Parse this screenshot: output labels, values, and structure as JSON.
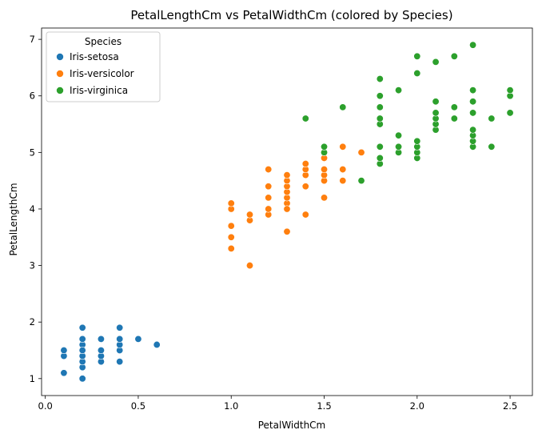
{
  "chart_data": {
    "type": "scatter",
    "title": "PetalLengthCm vs PetalWidthCm (colored by Species)",
    "xlabel": "PetalWidthCm",
    "ylabel": "PetalLengthCm",
    "xlim": [
      -0.02,
      2.62
    ],
    "ylim": [
      0.7,
      7.2
    ],
    "xticks": [
      0.0,
      0.5,
      1.0,
      1.5,
      2.0,
      2.5
    ],
    "xtick_labels": [
      "0.0",
      "0.5",
      "1.0",
      "1.5",
      "2.0",
      "2.5"
    ],
    "yticks": [
      1,
      2,
      3,
      4,
      5,
      6,
      7
    ],
    "ytick_labels": [
      "1",
      "2",
      "3",
      "4",
      "5",
      "6",
      "7"
    ],
    "grid": false,
    "legend": {
      "title": "Species",
      "placement": "top-left"
    },
    "series": [
      {
        "name": "Iris-setosa",
        "color": "#1f77b4",
        "x": [
          0.1,
          0.1,
          0.1,
          0.2,
          0.2,
          0.2,
          0.2,
          0.2,
          0.2,
          0.2,
          0.2,
          0.2,
          0.2,
          0.3,
          0.3,
          0.3,
          0.3,
          0.4,
          0.4,
          0.4,
          0.4,
          0.4,
          0.5,
          0.6
        ],
        "y": [
          1.1,
          1.4,
          1.5,
          1.0,
          1.2,
          1.3,
          1.4,
          1.5,
          1.6,
          1.7,
          1.9,
          1.4,
          1.5,
          1.3,
          1.4,
          1.5,
          1.7,
          1.3,
          1.5,
          1.6,
          1.7,
          1.9,
          1.7,
          1.6
        ]
      },
      {
        "name": "Iris-versicolor",
        "color": "#ff7f0e",
        "x": [
          1.0,
          1.0,
          1.0,
          1.0,
          1.0,
          1.1,
          1.1,
          1.1,
          1.2,
          1.2,
          1.2,
          1.2,
          1.2,
          1.3,
          1.3,
          1.3,
          1.3,
          1.3,
          1.3,
          1.3,
          1.3,
          1.3,
          1.3,
          1.4,
          1.4,
          1.4,
          1.4,
          1.4,
          1.4,
          1.5,
          1.5,
          1.5,
          1.5,
          1.5,
          1.5,
          1.6,
          1.6,
          1.6,
          1.7
        ],
        "y": [
          3.3,
          3.5,
          3.7,
          4.0,
          4.1,
          3.0,
          3.8,
          3.9,
          3.9,
          4.0,
          4.2,
          4.4,
          4.7,
          3.6,
          4.0,
          4.1,
          4.2,
          4.3,
          4.4,
          4.5,
          4.6,
          3.6,
          4.0,
          3.9,
          4.4,
          4.6,
          4.7,
          4.8,
          4.4,
          4.2,
          4.5,
          4.6,
          4.7,
          4.9,
          5.0,
          4.5,
          4.7,
          5.1,
          5.0
        ]
      },
      {
        "name": "Iris-virginica",
        "color": "#2ca02c",
        "x": [
          1.4,
          1.5,
          1.5,
          1.6,
          1.7,
          1.8,
          1.8,
          1.8,
          1.8,
          1.8,
          1.8,
          1.8,
          1.8,
          1.8,
          1.9,
          1.9,
          1.9,
          1.9,
          2.0,
          2.0,
          2.0,
          2.0,
          2.0,
          2.0,
          2.1,
          2.1,
          2.1,
          2.1,
          2.1,
          2.1,
          2.2,
          2.2,
          2.2,
          2.3,
          2.3,
          2.3,
          2.3,
          2.3,
          2.3,
          2.3,
          2.3,
          2.4,
          2.4,
          2.5,
          2.5,
          2.5
        ],
        "y": [
          5.6,
          5.0,
          5.1,
          5.8,
          4.5,
          4.8,
          4.9,
          5.1,
          5.5,
          5.6,
          5.8,
          6.0,
          6.3,
          5.1,
          5.0,
          5.1,
          5.3,
          6.1,
          4.9,
          5.0,
          5.1,
          5.2,
          6.4,
          6.7,
          5.4,
          5.5,
          5.6,
          5.7,
          5.9,
          6.6,
          5.6,
          5.8,
          6.7,
          5.1,
          5.2,
          5.3,
          5.4,
          5.7,
          5.9,
          6.1,
          6.9,
          5.1,
          5.6,
          5.7,
          6.0,
          6.1
        ]
      }
    ]
  }
}
